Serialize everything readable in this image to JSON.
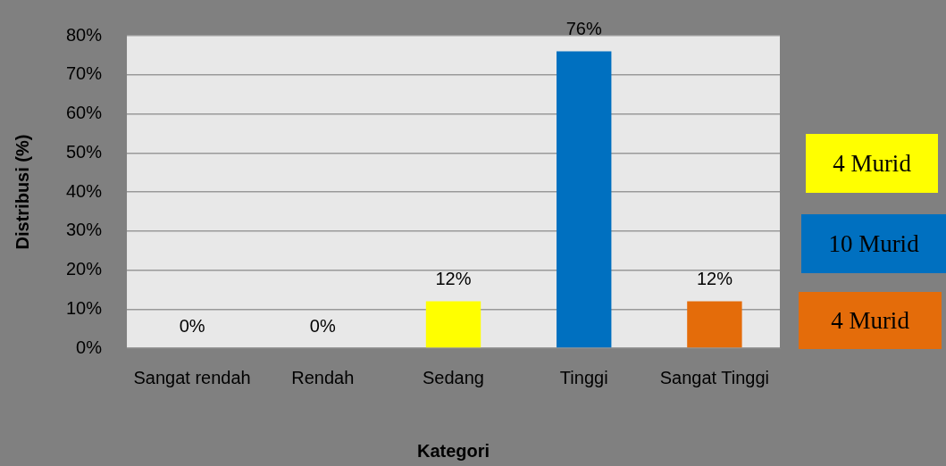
{
  "chart_data": {
    "type": "bar",
    "xlabel": "Kategori",
    "ylabel": "Distribusi (%)",
    "categories": [
      "Sangat rendah",
      "Rendah",
      "Sedang",
      "Tinggi",
      "Sangat Tinggi"
    ],
    "values": [
      0,
      0,
      12,
      76,
      12
    ],
    "colors": [
      "#ffff00",
      "#ffff00",
      "#ffff00",
      "#0070c0",
      "#e46c0a"
    ],
    "value_labels": [
      "0%",
      "0%",
      "12%",
      "76%",
      "12%"
    ],
    "ylim": [
      0,
      80
    ],
    "yticks": [
      {
        "value": 0,
        "label": "0%"
      },
      {
        "value": 10,
        "label": "10%"
      },
      {
        "value": 20,
        "label": "20%"
      },
      {
        "value": 30,
        "label": "30%"
      },
      {
        "value": 40,
        "label": "40%"
      },
      {
        "value": 50,
        "label": "50%"
      },
      {
        "value": 60,
        "label": "60%"
      },
      {
        "value": 70,
        "label": "70%"
      },
      {
        "value": 80,
        "label": "80%"
      }
    ],
    "grid": "y",
    "annotations": [
      "4 Murid",
      "10 Murid",
      "4 Murid"
    ]
  }
}
